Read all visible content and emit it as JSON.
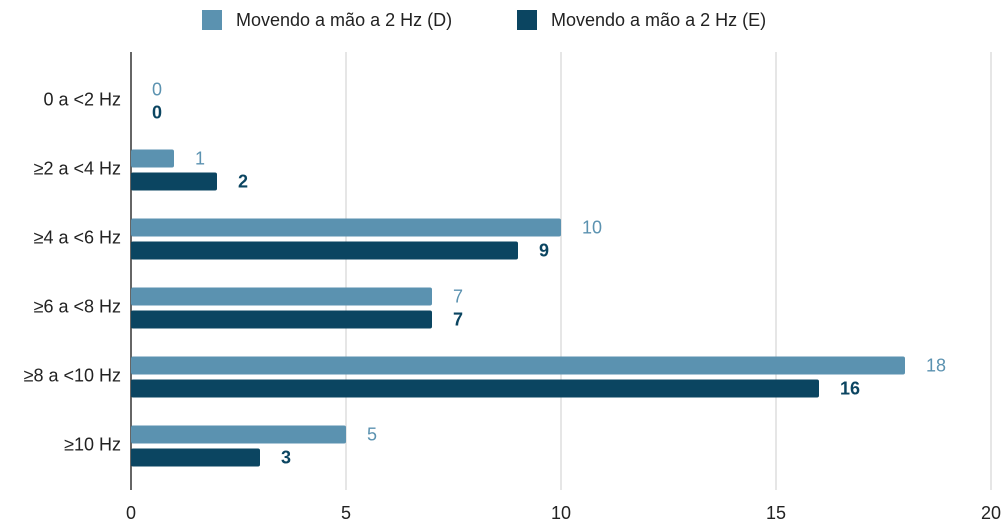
{
  "chart_data": {
    "type": "bar",
    "orientation": "horizontal",
    "categories": [
      "0 a <2 Hz",
      "≥2 a <4 Hz",
      "≥4 a <6 Hz",
      "≥6 a <8 Hz",
      "≥8 a <10 Hz",
      "≥10 Hz"
    ],
    "series": [
      {
        "name": "Movendo a mão a 2 Hz (D)",
        "color": "#5b92b0",
        "values": [
          0,
          1,
          10,
          7,
          18,
          5
        ]
      },
      {
        "name": "Movendo a mão a 2 Hz (E)",
        "color": "#0b4561",
        "values": [
          0,
          2,
          9,
          7,
          16,
          3
        ]
      }
    ],
    "xlim": [
      0,
      20
    ],
    "xticks": [
      0,
      5,
      10,
      15,
      20
    ],
    "grid": true,
    "legend": "top"
  }
}
